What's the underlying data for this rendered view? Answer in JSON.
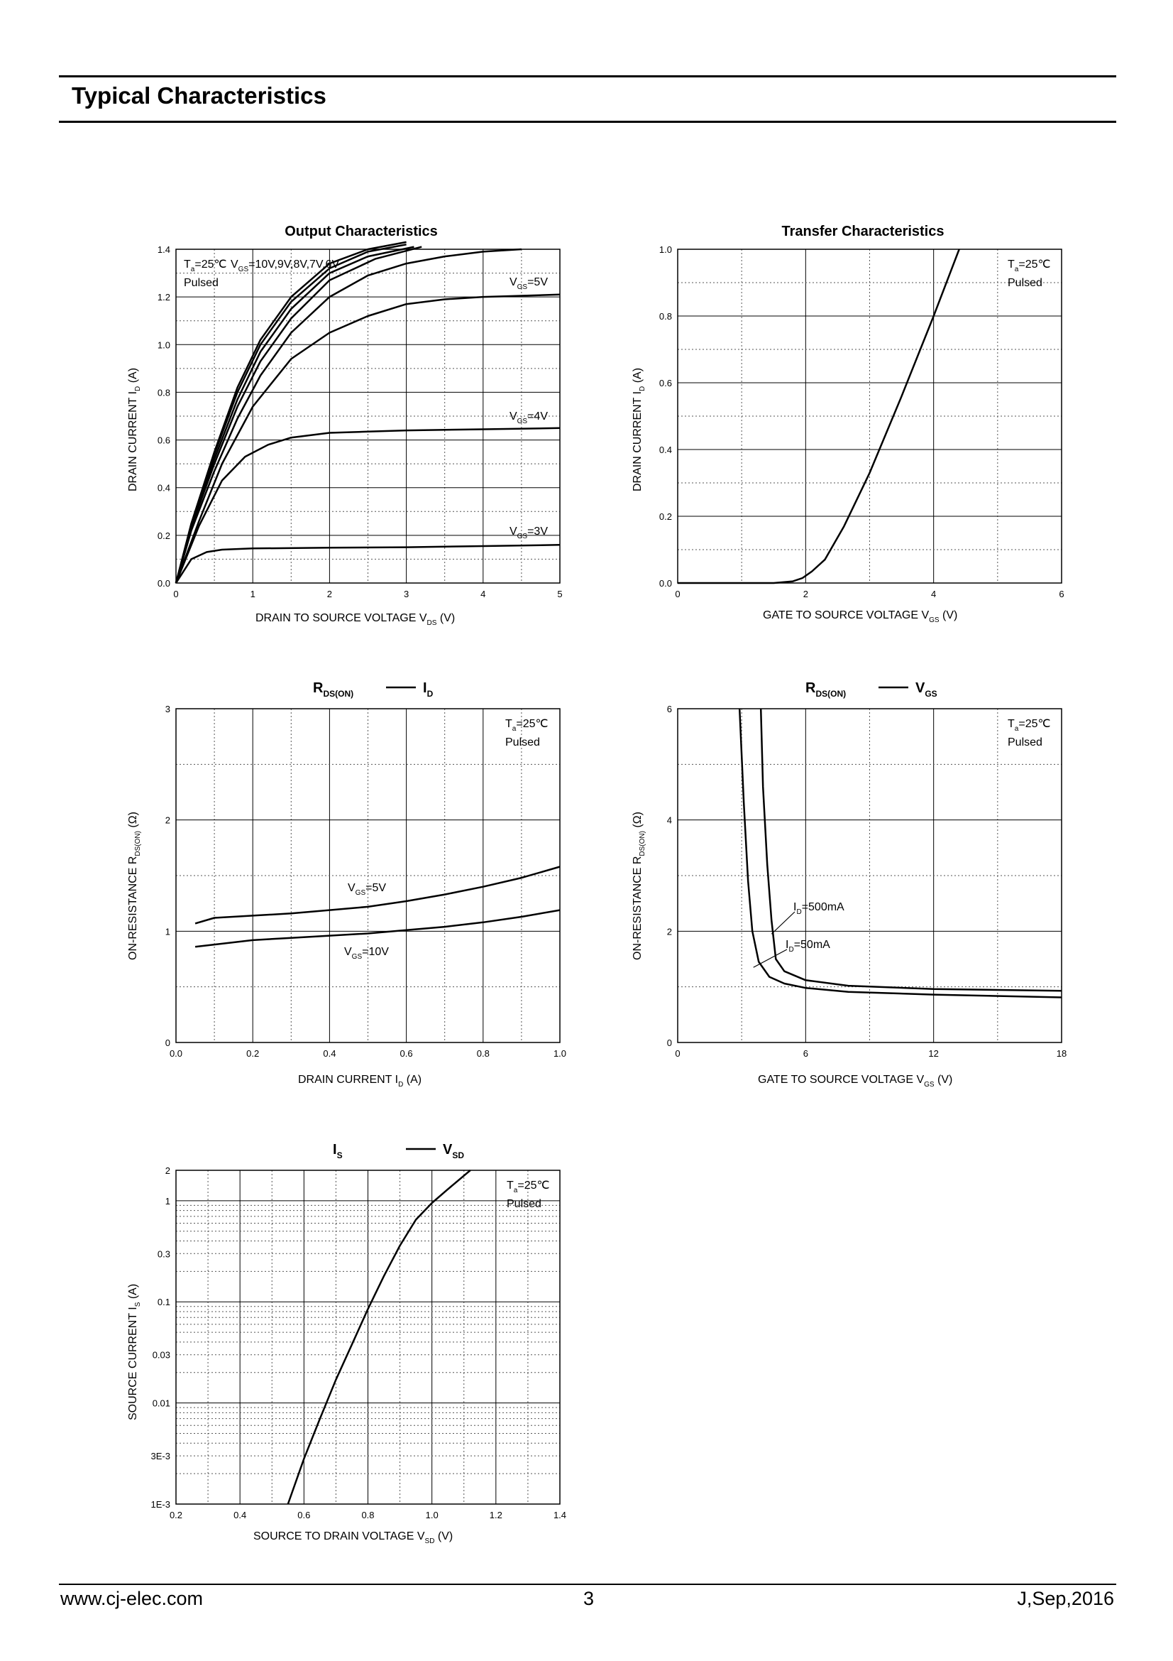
{
  "header": {
    "title": "Typical Characteristics"
  },
  "footer": {
    "website": "www.cj-elec.com",
    "page_number": "3",
    "date_code": "J,Sep,2016"
  },
  "chart_data": [
    {
      "type": "line",
      "title": "Output Characteristics",
      "xlabel": "DRAIN TO SOURCE VOLTAGE",
      "xlabel_sym": "V",
      "xlabel_sub": "DS",
      "xlabel_unit": "(V)",
      "ylabel": "DRAIN CURRENT",
      "ylabel_sym": "I",
      "ylabel_sub": "D",
      "ylabel_unit": "(A)",
      "xlim": [
        0,
        5
      ],
      "ylim": [
        0,
        1.4
      ],
      "grid": true,
      "xticks": [
        "0",
        "1",
        "2",
        "3",
        "4",
        "5"
      ],
      "yticks": [
        "0.0",
        "0.2",
        "0.4",
        "0.6",
        "0.8",
        "1.0",
        "1.2",
        "1.4"
      ],
      "conditions": [
        {
          "sym": "T",
          "sub": "a",
          "text": "=25℃"
        },
        {
          "text": "Pulsed"
        }
      ],
      "annotations": [
        {
          "sym": "V",
          "sub": "GS",
          "text": "=10V,9V,8V,7V,6V"
        },
        {
          "sym": "V",
          "sub": "GS",
          "text": "=5V"
        },
        {
          "sym": "V",
          "sub": "GS",
          "text": "=4V"
        },
        {
          "sym": "V",
          "sub": "GS",
          "text": "=3V"
        }
      ],
      "series": [
        {
          "x": [
            0,
            0.2,
            0.5,
            0.8,
            1.1,
            1.5,
            2.0,
            2.5,
            3.0
          ],
          "y": [
            0,
            0.25,
            0.55,
            0.82,
            1.02,
            1.2,
            1.34,
            1.4,
            1.43
          ]
        },
        {
          "x": [
            0,
            0.2,
            0.5,
            0.8,
            1.1,
            1.5,
            2.0,
            2.5,
            3.0
          ],
          "y": [
            0,
            0.245,
            0.54,
            0.8,
            1.0,
            1.18,
            1.32,
            1.39,
            1.42
          ]
        },
        {
          "x": [
            0,
            0.2,
            0.5,
            0.8,
            1.1,
            1.5,
            2.0,
            2.5,
            3.1
          ],
          "y": [
            0,
            0.24,
            0.52,
            0.77,
            0.97,
            1.15,
            1.3,
            1.37,
            1.41
          ]
        },
        {
          "x": [
            0,
            0.2,
            0.5,
            0.8,
            1.1,
            1.5,
            2.0,
            2.6,
            3.2
          ],
          "y": [
            0,
            0.235,
            0.5,
            0.74,
            0.93,
            1.11,
            1.27,
            1.36,
            1.41
          ]
        },
        {
          "x": [
            0,
            0.2,
            0.5,
            0.8,
            1.1,
            1.5,
            2.0,
            2.5,
            3.0,
            3.5,
            4.0,
            4.5
          ],
          "y": [
            0,
            0.22,
            0.47,
            0.69,
            0.87,
            1.05,
            1.2,
            1.29,
            1.34,
            1.37,
            1.39,
            1.4
          ]
        },
        {
          "x": [
            0,
            0.3,
            0.6,
            1.0,
            1.5,
            2.0,
            2.5,
            3.0,
            3.5,
            4.0,
            4.5,
            5.0
          ],
          "y": [
            0,
            0.26,
            0.5,
            0.74,
            0.94,
            1.05,
            1.12,
            1.17,
            1.19,
            1.2,
            1.205,
            1.21
          ]
        },
        {
          "x": [
            0,
            0.3,
            0.6,
            0.9,
            1.2,
            1.5,
            2.0,
            2.5,
            3.0,
            4.0,
            5.0
          ],
          "y": [
            0,
            0.24,
            0.43,
            0.53,
            0.58,
            0.61,
            0.63,
            0.635,
            0.64,
            0.645,
            0.65
          ]
        },
        {
          "x": [
            0,
            0.2,
            0.4,
            0.6,
            1.0,
            2.0,
            3.0,
            4.0,
            5.0
          ],
          "y": [
            0,
            0.1,
            0.13,
            0.14,
            0.145,
            0.148,
            0.15,
            0.155,
            0.16
          ]
        }
      ]
    },
    {
      "type": "line",
      "title": "Transfer Characteristics",
      "xlabel": "GATE TO SOURCE VOLTAGE",
      "xlabel_sym": "V",
      "xlabel_sub": "GS",
      "xlabel_unit": "(V)",
      "ylabel": "DRAIN CURRENT",
      "ylabel_sym": "I",
      "ylabel_sub": "D",
      "ylabel_unit": "(A)",
      "xlim": [
        0,
        6
      ],
      "ylim": [
        0,
        1.0
      ],
      "grid": true,
      "xticks": [
        "0",
        "2",
        "4",
        "6"
      ],
      "yticks": [
        "0.0",
        "0.2",
        "0.4",
        "0.6",
        "0.8",
        "1.0"
      ],
      "conditions": [
        {
          "sym": "T",
          "sub": "a",
          "text": "=25℃"
        },
        {
          "text": "Pulsed"
        }
      ],
      "annotations": [],
      "series": [
        {
          "x": [
            0,
            1.5,
            1.8,
            1.95,
            2.1,
            2.3,
            2.6,
            3.0,
            3.5,
            4.0,
            4.4
          ],
          "y": [
            0,
            0,
            0.005,
            0.015,
            0.035,
            0.07,
            0.17,
            0.33,
            0.56,
            0.8,
            1.0
          ]
        }
      ]
    },
    {
      "type": "line",
      "title_sym": "R",
      "title_sub": "DS(ON)",
      "title_right_sym": "I",
      "title_right_sub": "D",
      "xlabel": "DRAIN CURRENT",
      "xlabel_sym": "I",
      "xlabel_sub": "D",
      "xlabel_unit": "(A)",
      "ylabel": "ON-RESISTANCE",
      "ylabel_sym": "R",
      "ylabel_sub": "DS(ON)",
      "ylabel_unit": "(Ω)",
      "xlim": [
        0,
        1.0
      ],
      "ylim": [
        0,
        3
      ],
      "grid": true,
      "xticks": [
        "0.0",
        "0.2",
        "0.4",
        "0.6",
        "0.8",
        "1.0"
      ],
      "yticks": [
        "0",
        "1",
        "2",
        "3"
      ],
      "conditions": [
        {
          "sym": "T",
          "sub": "a",
          "text": "=25℃"
        },
        {
          "text": "Pulsed"
        }
      ],
      "annotations": [
        {
          "sym": "V",
          "sub": "GS",
          "text": "=5V"
        },
        {
          "sym": "V",
          "sub": "GS",
          "text": "=10V"
        }
      ],
      "series": [
        {
          "x": [
            0.05,
            0.1,
            0.2,
            0.3,
            0.4,
            0.5,
            0.6,
            0.7,
            0.8,
            0.9,
            1.0
          ],
          "y": [
            1.07,
            1.12,
            1.14,
            1.16,
            1.19,
            1.22,
            1.27,
            1.33,
            1.4,
            1.48,
            1.58
          ]
        },
        {
          "x": [
            0.05,
            0.1,
            0.2,
            0.3,
            0.4,
            0.5,
            0.6,
            0.7,
            0.8,
            0.9,
            1.0
          ],
          "y": [
            0.86,
            0.88,
            0.92,
            0.94,
            0.96,
            0.98,
            1.01,
            1.04,
            1.08,
            1.13,
            1.19
          ]
        }
      ]
    },
    {
      "type": "line",
      "title_sym": "R",
      "title_sub": "DS(ON)",
      "title_right_sym": "V",
      "title_right_sub": "GS",
      "xlabel": "GATE TO SOURCE VOLTAGE",
      "xlabel_sym": "V",
      "xlabel_sub": "GS",
      "xlabel_unit": "(V)",
      "ylabel": "ON-RESISTANCE",
      "ylabel_sym": "R",
      "ylabel_sub": "DS(ON)",
      "ylabel_unit": "(Ω)",
      "xlim": [
        0,
        18
      ],
      "ylim": [
        0,
        6
      ],
      "grid": true,
      "xticks": [
        "0",
        "6",
        "12",
        "18"
      ],
      "yticks": [
        "0",
        "2",
        "4",
        "6"
      ],
      "conditions": [
        {
          "sym": "T",
          "sub": "a",
          "text": "=25℃"
        },
        {
          "text": "Pulsed"
        }
      ],
      "annotations": [
        {
          "sym": "I",
          "sub": "D",
          "text": "=500mA"
        },
        {
          "sym": "I",
          "sub": "D",
          "text": "=50mA"
        }
      ],
      "series": [
        {
          "name": "",
          "x": [
            3.9,
            4.0,
            4.2,
            4.4,
            4.6,
            5.0,
            6.0,
            8.0,
            12.0,
            18.0
          ],
          "y": [
            6.0,
            4.6,
            3.2,
            2.2,
            1.5,
            1.28,
            1.12,
            1.02,
            0.96,
            0.93
          ]
        },
        {
          "x": [
            2.9,
            3.1,
            3.3,
            3.5,
            3.8,
            4.3,
            5.0,
            6.0,
            8.0,
            12.0,
            18.0
          ],
          "y": [
            6.0,
            4.3,
            2.9,
            2.0,
            1.45,
            1.18,
            1.06,
            0.98,
            0.91,
            0.86,
            0.81
          ]
        }
      ]
    },
    {
      "type": "line",
      "title_sym": "I",
      "title_sub": "S",
      "title_right_sym": "V",
      "title_right_sub": "SD",
      "xlabel": "SOURCE TO DRAIN VOLTAGE",
      "xlabel_sym": "V",
      "xlabel_sub": "SD",
      "xlabel_unit": "(V)",
      "ylabel": "SOURCE CURRENT",
      "ylabel_sym": "I",
      "ylabel_sub": "S",
      "ylabel_unit": "(A)",
      "xlim": [
        0.2,
        1.4
      ],
      "ylim": [
        0.001,
        2
      ],
      "yscale": "log",
      "grid": true,
      "xticks": [
        "0.2",
        "0.4",
        "0.6",
        "0.8",
        "1.0",
        "1.2",
        "1.4"
      ],
      "yticks": [
        "1E-3",
        "3E-3",
        "0.01",
        "0.03",
        "0.1",
        "0.3",
        "1",
        "2"
      ],
      "conditions": [
        {
          "sym": "T",
          "sub": "a",
          "text": "=25℃"
        },
        {
          "text": "Pulsed"
        }
      ],
      "annotations": [],
      "series": [
        {
          "x": [
            0.55,
            0.6,
            0.65,
            0.7,
            0.75,
            0.8,
            0.85,
            0.9,
            0.95,
            1.0,
            1.05,
            1.12
          ],
          "y": [
            0.001,
            0.0028,
            0.007,
            0.017,
            0.038,
            0.085,
            0.18,
            0.36,
            0.65,
            0.95,
            1.3,
            2.0
          ]
        }
      ]
    }
  ]
}
